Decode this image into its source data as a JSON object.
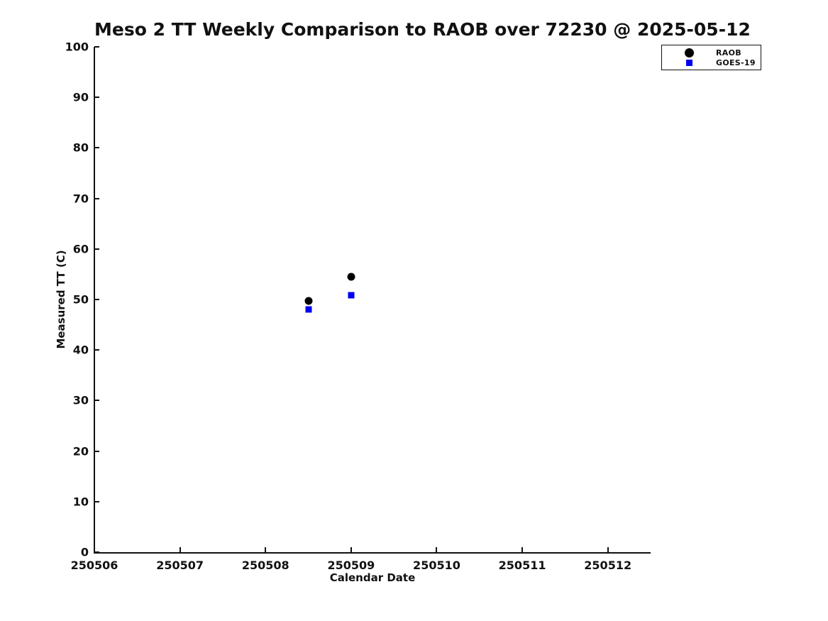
{
  "chart_data": {
    "type": "scatter",
    "title": "Meso 2 TT Weekly Comparison to RAOB over 72230 @ 2025-05-12",
    "xlabel": "Calendar Date",
    "ylabel": "Measured TT (C)",
    "xlim": [
      250506,
      250512.5
    ],
    "ylim": [
      0,
      100
    ],
    "xticks": [
      250506,
      250507,
      250508,
      250509,
      250510,
      250511,
      250512
    ],
    "yticks": [
      0,
      10,
      20,
      30,
      40,
      50,
      60,
      70,
      80,
      90,
      100
    ],
    "grid": false,
    "legend_position": "outside-upper-right",
    "series": [
      {
        "name": "RAOB",
        "marker": "circle",
        "color": "#000000",
        "points": [
          {
            "x": 250508.5,
            "y": 49.7
          },
          {
            "x": 250509.0,
            "y": 54.5
          }
        ]
      },
      {
        "name": "GOES-19",
        "marker": "square",
        "color": "#0000f0",
        "points": [
          {
            "x": 250508.5,
            "y": 48.0
          },
          {
            "x": 250509.0,
            "y": 50.9
          }
        ]
      }
    ]
  }
}
